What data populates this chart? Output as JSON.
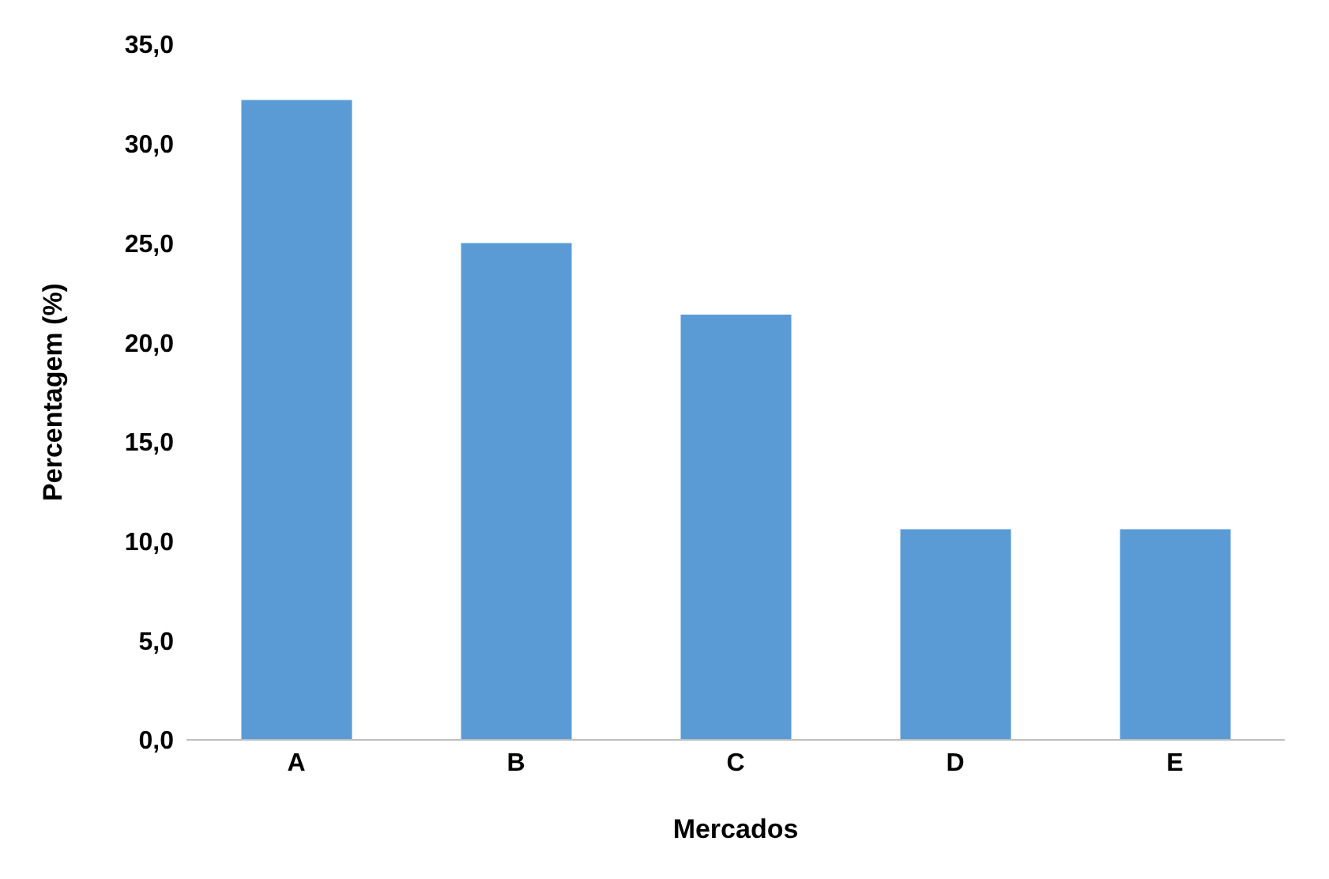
{
  "chart_data": {
    "type": "bar",
    "xlabel": "Mercados",
    "ylabel": "Percentagem (%)",
    "categories": [
      "A",
      "B",
      "C",
      "D",
      "E"
    ],
    "values": [
      32.2,
      25.0,
      21.4,
      10.6,
      10.6
    ],
    "color": "#5b9bd5",
    "ylim": [
      0,
      35
    ],
    "yticks": [
      {
        "value": 0,
        "label": "0,0"
      },
      {
        "value": 5,
        "label": "5,0"
      },
      {
        "value": 10,
        "label": "10,0"
      },
      {
        "value": 15,
        "label": "15,0"
      },
      {
        "value": 20,
        "label": "20,0"
      },
      {
        "value": 25,
        "label": "25,0"
      },
      {
        "value": 30,
        "label": "30,0"
      },
      {
        "value": 35,
        "label": "35,0"
      }
    ],
    "grid": false
  }
}
